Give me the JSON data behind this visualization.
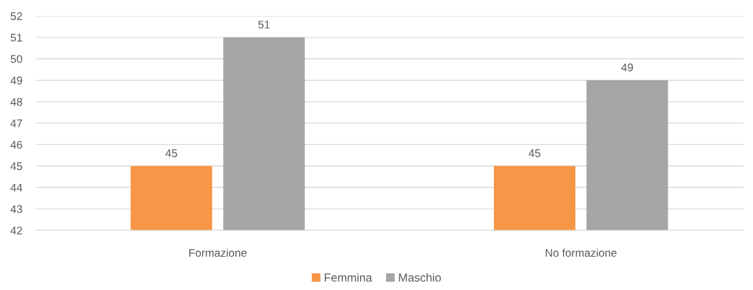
{
  "chart_data": {
    "type": "bar",
    "categories": [
      "Formazione",
      "No formazione"
    ],
    "series": [
      {
        "name": "Femmina",
        "color": "#f79646",
        "values": [
          45,
          45
        ]
      },
      {
        "name": "Maschio",
        "color": "#a5a5a5",
        "values": [
          51,
          49
        ]
      }
    ],
    "ylim": [
      42,
      52
    ],
    "yticks": [
      42,
      43,
      44,
      45,
      46,
      47,
      48,
      49,
      50,
      51,
      52
    ],
    "grid": "y",
    "legend": "bottom",
    "data_labels": true
  }
}
